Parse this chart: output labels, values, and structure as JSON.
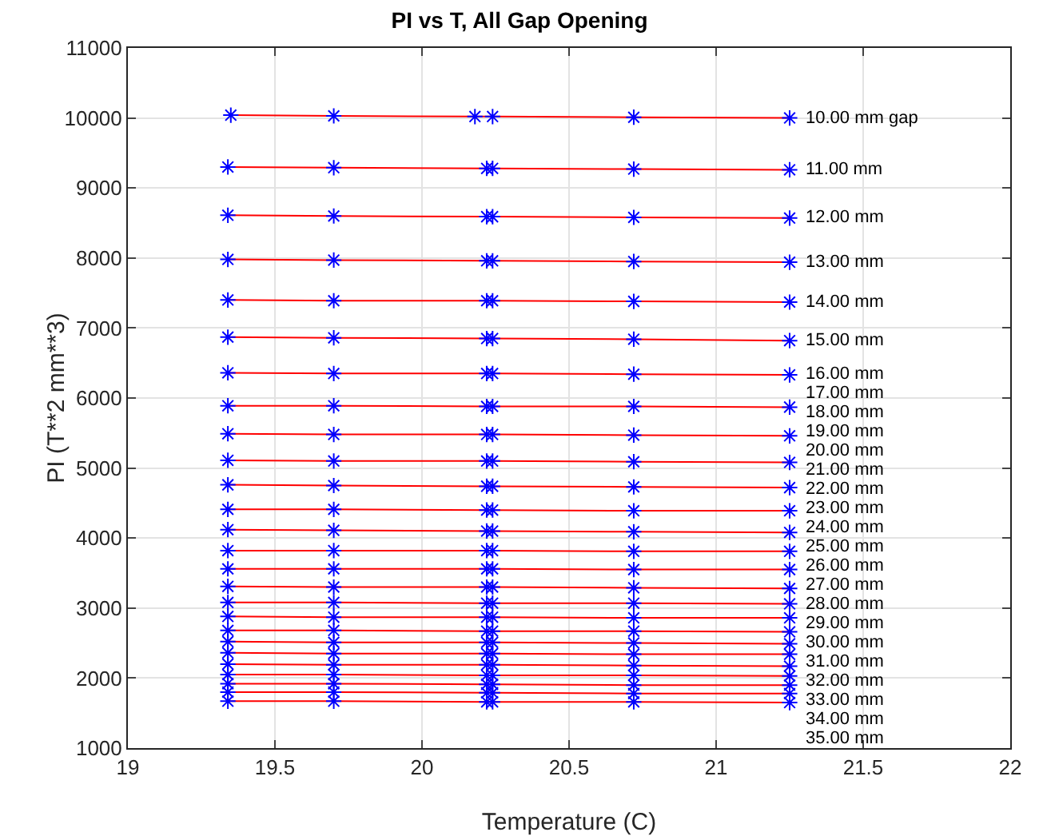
{
  "chart_data": {
    "type": "line",
    "title": "PI vs T, All Gap Opening",
    "xlabel": "Temperature (C)",
    "ylabel": "PI (T**2 mm**3)",
    "x": [
      19.34,
      19.7,
      20.22,
      20.24,
      20.72,
      21.25
    ],
    "xlim": [
      19,
      22
    ],
    "xticks": [
      19,
      19.5,
      20,
      20.5,
      21,
      21.5,
      22
    ],
    "ylim": [
      1000,
      11000
    ],
    "yticks": [
      1000,
      2000,
      3000,
      4000,
      5000,
      6000,
      7000,
      8000,
      9000,
      10000,
      11000
    ],
    "grid": true,
    "legend": false,
    "marker": "cross",
    "line_style": "solid",
    "series": [
      {
        "name": "10.00 mm gap",
        "color": "#ff0000",
        "colors": [
          "#0000ff",
          "#0000ff",
          "#0000ff",
          "#0000ff",
          "#0000ff",
          "#0000ff"
        ],
        "x": [
          19.35,
          19.7,
          20.18,
          20.24,
          20.72,
          21.25
        ],
        "values": [
          10040,
          10030,
          10020,
          10020,
          10010,
          10000
        ]
      },
      {
        "name": "11.00 mm",
        "color": "#ff0000",
        "colors": [
          "#0000ff",
          "#0000ff",
          "#0000ff",
          "#0000ff",
          "#0000ff",
          "#0000ff"
        ],
        "values": [
          9300,
          9290,
          9280,
          9280,
          9270,
          9260
        ]
      },
      {
        "name": "12.00 mm",
        "color": "#ff0000",
        "colors": [
          "#0000ff",
          "#0000ff",
          "#0000ff",
          "#0000ff",
          "#0000ff",
          "#0000ff"
        ],
        "values": [
          8610,
          8600,
          8590,
          8590,
          8580,
          8570
        ]
      },
      {
        "name": "13.00 mm",
        "color": "#ff0000",
        "colors": [
          "#0000ff",
          "#0000ff",
          "#0000ff",
          "#0000ff",
          "#0000ff",
          "#0000ff"
        ],
        "values": [
          7980,
          7970,
          7960,
          7960,
          7950,
          7940
        ]
      },
      {
        "name": "14.00 mm",
        "color": "#ff0000",
        "colors": [
          "#0000ff",
          "#0000ff",
          "#0000ff",
          "#0000ff",
          "#0000ff",
          "#0000ff"
        ],
        "values": [
          7400,
          7390,
          7390,
          7390,
          7380,
          7370
        ]
      },
      {
        "name": "15.00 mm",
        "color": "#ff0000",
        "colors": [
          "#0000ff",
          "#0000ff",
          "#0000ff",
          "#0000ff",
          "#0000ff",
          "#0000ff"
        ],
        "values": [
          6870,
          6860,
          6850,
          6850,
          6840,
          6820
        ]
      },
      {
        "name": "16.00 mm",
        "color": "#ff0000",
        "colors": [
          "#0000ff",
          "#0000ff",
          "#0000ff",
          "#0000ff",
          "#0000ff",
          "#0000ff"
        ],
        "values": [
          6360,
          6350,
          6350,
          6350,
          6340,
          6330
        ]
      },
      {
        "name": "17.00 mm",
        "color": "#ff0000",
        "colors": [
          "#0000ff",
          "#0000ff",
          "#0000ff",
          "#0000ff",
          "#0000ff",
          "#0000ff"
        ],
        "values": [
          5890,
          5890,
          5880,
          5880,
          5880,
          5870
        ]
      },
      {
        "name": "18.00 mm",
        "color": "#ff0000",
        "colors": [
          "#0000ff",
          "#0000ff",
          "#0000ff",
          "#0000ff",
          "#0000ff",
          "#0000ff"
        ],
        "values": [
          5490,
          5480,
          5480,
          5480,
          5470,
          5460
        ]
      },
      {
        "name": "19.00 mm",
        "color": "#ff0000",
        "colors": [
          "#0000ff",
          "#0000ff",
          "#0000ff",
          "#0000ff",
          "#0000ff",
          "#0000ff"
        ],
        "values": [
          5110,
          5100,
          5100,
          5100,
          5090,
          5080
        ]
      },
      {
        "name": "20.00 mm",
        "color": "#ff0000",
        "colors": [
          "#0000ff",
          "#0000ff",
          "#0000ff",
          "#0000ff",
          "#0000ff",
          "#0000ff"
        ],
        "values": [
          4760,
          4750,
          4740,
          4740,
          4730,
          4720
        ]
      },
      {
        "name": "21.00 mm",
        "color": "#ff0000",
        "colors": [
          "#0000ff",
          "#0000ff",
          "#0000ff",
          "#0000ff",
          "#0000ff",
          "#0000ff"
        ],
        "values": [
          4410,
          4410,
          4400,
          4400,
          4390,
          4390
        ]
      },
      {
        "name": "22.00 mm",
        "color": "#ff0000",
        "colors": [
          "#0000ff",
          "#0000ff",
          "#0000ff",
          "#0000ff",
          "#0000ff",
          "#0000ff"
        ],
        "values": [
          4120,
          4110,
          4100,
          4100,
          4090,
          4080
        ]
      },
      {
        "name": "23.00 mm",
        "color": "#ff0000",
        "colors": [
          "#0000ff",
          "#0000ff",
          "#0000ff",
          "#0000ff",
          "#0000ff",
          "#0000ff"
        ],
        "values": [
          3820,
          3820,
          3820,
          3820,
          3810,
          3810
        ]
      },
      {
        "name": "24.00 mm",
        "color": "#ff0000",
        "colors": [
          "#0000ff",
          "#0000ff",
          "#0000ff",
          "#0000ff",
          "#0000ff",
          "#0000ff"
        ],
        "values": [
          3560,
          3560,
          3560,
          3560,
          3550,
          3550
        ]
      },
      {
        "name": "25.00 mm",
        "color": "#ff0000",
        "colors": [
          "#0000ff",
          "#0000ff",
          "#0000ff",
          "#0000ff",
          "#0000ff",
          "#0000ff"
        ],
        "values": [
          3310,
          3300,
          3300,
          3300,
          3290,
          3280
        ]
      },
      {
        "name": "26.00 mm",
        "color": "#ff0000",
        "colors": [
          "#0000ff",
          "#0000ff",
          "#0000ff",
          "#0000ff",
          "#0000ff",
          "#0000ff"
        ],
        "values": [
          3080,
          3080,
          3070,
          3070,
          3070,
          3060
        ]
      },
      {
        "name": "27.00 mm",
        "color": "#ff0000",
        "colors": [
          "#0000ff",
          "#0000ff",
          "#0000ff",
          "#0000ff",
          "#0000ff",
          "#0000ff"
        ],
        "values": [
          2880,
          2870,
          2870,
          2870,
          2860,
          2860
        ]
      },
      {
        "name": "28.00 mm",
        "color": "#ff0000",
        "colors": [
          "#0000ff",
          "#0000ff",
          "#0000ff",
          "#0000ff",
          "#0000ff",
          "#0000ff"
        ],
        "values": [
          2680,
          2680,
          2670,
          2670,
          2670,
          2660
        ]
      },
      {
        "name": "29.00 mm",
        "color": "#ff0000",
        "colors": [
          "#0000ff",
          "#0000ff",
          "#0000ff",
          "#0000ff",
          "#0000ff",
          "#0000ff"
        ],
        "values": [
          2520,
          2510,
          2510,
          2510,
          2500,
          2490
        ]
      },
      {
        "name": "30.00 mm",
        "color": "#ff0000",
        "colors": [
          "#0000ff",
          "#0000ff",
          "#0000ff",
          "#0000ff",
          "#0000ff",
          "#0000ff"
        ],
        "values": [
          2360,
          2350,
          2350,
          2350,
          2340,
          2340
        ]
      },
      {
        "name": "31.00 mm",
        "color": "#ff0000",
        "colors": [
          "#0000ff",
          "#0000ff",
          "#0000ff",
          "#0000ff",
          "#0000ff",
          "#0000ff"
        ],
        "values": [
          2200,
          2190,
          2190,
          2190,
          2180,
          2170
        ]
      },
      {
        "name": "32.00 mm",
        "color": "#ff0000",
        "colors": [
          "#0000ff",
          "#0000ff",
          "#0000ff",
          "#0000ff",
          "#0000ff",
          "#0000ff"
        ],
        "values": [
          2050,
          2050,
          2040,
          2040,
          2040,
          2030
        ]
      },
      {
        "name": "33.00 mm",
        "color": "#ff0000",
        "colors": [
          "#0000ff",
          "#0000ff",
          "#0000ff",
          "#0000ff",
          "#0000ff",
          "#0000ff"
        ],
        "values": [
          1920,
          1920,
          1910,
          1910,
          1900,
          1900
        ]
      },
      {
        "name": "34.00 mm",
        "color": "#ff0000",
        "colors": [
          "#0000ff",
          "#0000ff",
          "#0000ff",
          "#0000ff",
          "#0000ff",
          "#0000ff"
        ],
        "values": [
          1800,
          1800,
          1790,
          1790,
          1780,
          1780
        ]
      },
      {
        "name": "35.00 mm",
        "color": "#ff0000",
        "colors": [
          "#0000ff",
          "#0000ff",
          "#0000ff",
          "#0000ff",
          "#0000ff",
          "#0000ff"
        ],
        "values": [
          1670,
          1670,
          1660,
          1660,
          1660,
          1650
        ]
      }
    ]
  }
}
